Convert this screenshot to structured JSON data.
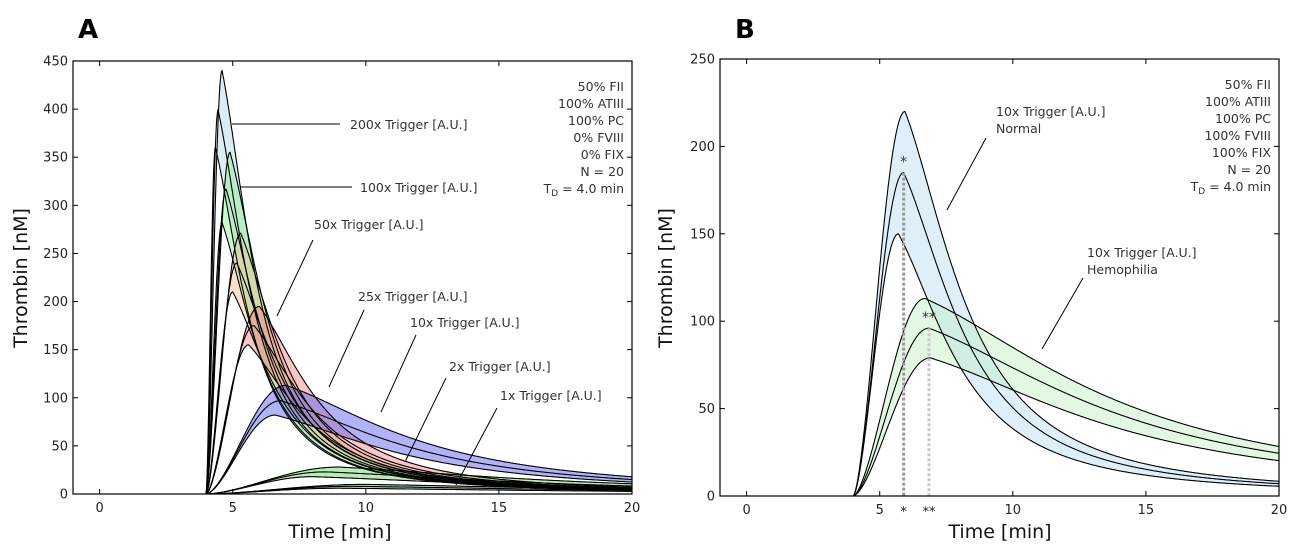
{
  "chart_data": [
    {
      "panel": "A",
      "type": "line",
      "xlabel": "Time [min]",
      "ylabel": "Thrombin [nM]",
      "xlim": [
        -1,
        20
      ],
      "ylim": [
        0,
        450
      ],
      "xticks": [
        0,
        5,
        10,
        15,
        20
      ],
      "yticks": [
        0,
        50,
        100,
        150,
        200,
        250,
        300,
        350,
        400,
        450
      ],
      "grid": false,
      "conditions": [
        "50% FII",
        "100% ATIII",
        "100% PC",
        "0% FVIII",
        "0% FIX",
        "N = 20",
        "T₀ = 4.0 min"
      ],
      "series": [
        {
          "name": "200x Trigger [A.U.]",
          "color": "#add8e6",
          "onset": 4.0,
          "peak_time": [
            4.35,
            4.45,
            4.6
          ],
          "peak_value": [
            360,
            399,
            440
          ],
          "decay": [
            1.6,
            1.6,
            1.6
          ]
        },
        {
          "name": "100x Trigger [A.U.]",
          "color": "#90ee90",
          "onset": 4.0,
          "peak_time": [
            4.6,
            4.75,
            4.9
          ],
          "peak_value": [
            282,
            317,
            355
          ],
          "decay": [
            1.8,
            1.8,
            1.8
          ]
        },
        {
          "name": "50x Trigger [A.U.]",
          "color": "#f5c28f",
          "onset": 4.0,
          "peak_time": [
            5.0,
            5.15,
            5.3
          ],
          "peak_value": [
            210,
            240,
            271
          ],
          "decay": [
            2.1,
            2.1,
            2.1
          ]
        },
        {
          "name": "25x Trigger [A.U.]",
          "color": "#f08080",
          "onset": 4.0,
          "peak_time": [
            5.6,
            5.8,
            6.0
          ],
          "peak_value": [
            155,
            175,
            195
          ],
          "decay": [
            2.7,
            2.7,
            2.7
          ]
        },
        {
          "name": "10x Trigger [A.U.]",
          "color": "#5555ee",
          "onset": 4.0,
          "peak_time": [
            6.6,
            6.8,
            7.0
          ],
          "peak_value": [
            82,
            97,
            113
          ],
          "decay": [
            6.0,
            6.0,
            6.0
          ]
        },
        {
          "name": "2x Trigger [A.U.]",
          "color": "#5cd65c",
          "onset": 4.0,
          "peak_time": [
            8.0,
            8.5,
            9.0
          ],
          "peak_value": [
            18,
            23,
            28
          ],
          "decay": [
            10.0,
            10.0,
            10.0
          ]
        },
        {
          "name": "1x Trigger [A.U.]",
          "color": "#44aa44",
          "onset": 4.0,
          "peak_time": [
            9.0,
            9.5,
            10.0
          ],
          "peak_value": [
            6,
            8,
            10
          ],
          "decay": [
            12.0,
            12.0,
            12.0
          ]
        }
      ],
      "annotations": [
        "200x Trigger [A.U.]",
        "100x Trigger [A.U.]",
        "50x Trigger [A.U.]",
        "25x Trigger [A.U.]",
        "10x Trigger [A.U.]",
        "2x Trigger [A.U.]",
        "1x Trigger [A.U.]"
      ]
    },
    {
      "panel": "B",
      "type": "line",
      "xlabel": "Time [min]",
      "ylabel": "Thrombin [nM]",
      "xlim": [
        -1,
        20
      ],
      "ylim": [
        0,
        250
      ],
      "xticks": [
        0,
        5,
        10,
        15,
        20
      ],
      "yticks": [
        0,
        50,
        100,
        150,
        200,
        250
      ],
      "grid": false,
      "conditions": [
        "50% FII",
        "100% ATIII",
        "100% PC",
        "100% FVIII",
        "100% FIX",
        "N = 20",
        "T₀ = 4.0 min"
      ],
      "series": [
        {
          "name": "10x Trigger [A.U.] Normal",
          "color": "#b9dcf3",
          "onset": 4.0,
          "peak_time": [
            5.7,
            5.9,
            5.95
          ],
          "peak_value": [
            150,
            185,
            220
          ],
          "decay": [
            2.8,
            2.8,
            2.8
          ]
        },
        {
          "name": "10x Trigger [A.U.] Hemophilia",
          "color": "#c2f0c2",
          "onset": 4.0,
          "peak_time": [
            6.9,
            6.85,
            6.7
          ],
          "peak_value": [
            79,
            96,
            113
          ],
          "decay": [
            8.5,
            8.5,
            8.5
          ]
        }
      ],
      "markers": [
        {
          "label": "*",
          "x": 5.9,
          "y": 185,
          "color": "#999999"
        },
        {
          "label": "**",
          "x": 6.85,
          "y": 96,
          "color": "#c8c8c8"
        }
      ],
      "annotations": [
        "10x Trigger [A.U.]",
        "Normal",
        "10x Trigger [A.U.]",
        "Hemophilia"
      ]
    }
  ],
  "panel_labels": [
    "A",
    "B"
  ],
  "star_labels": {
    "single": "*",
    "double": "**"
  },
  "td_prefix": "T",
  "td_sub": "D",
  "td_suffix": " = 4.0 min"
}
